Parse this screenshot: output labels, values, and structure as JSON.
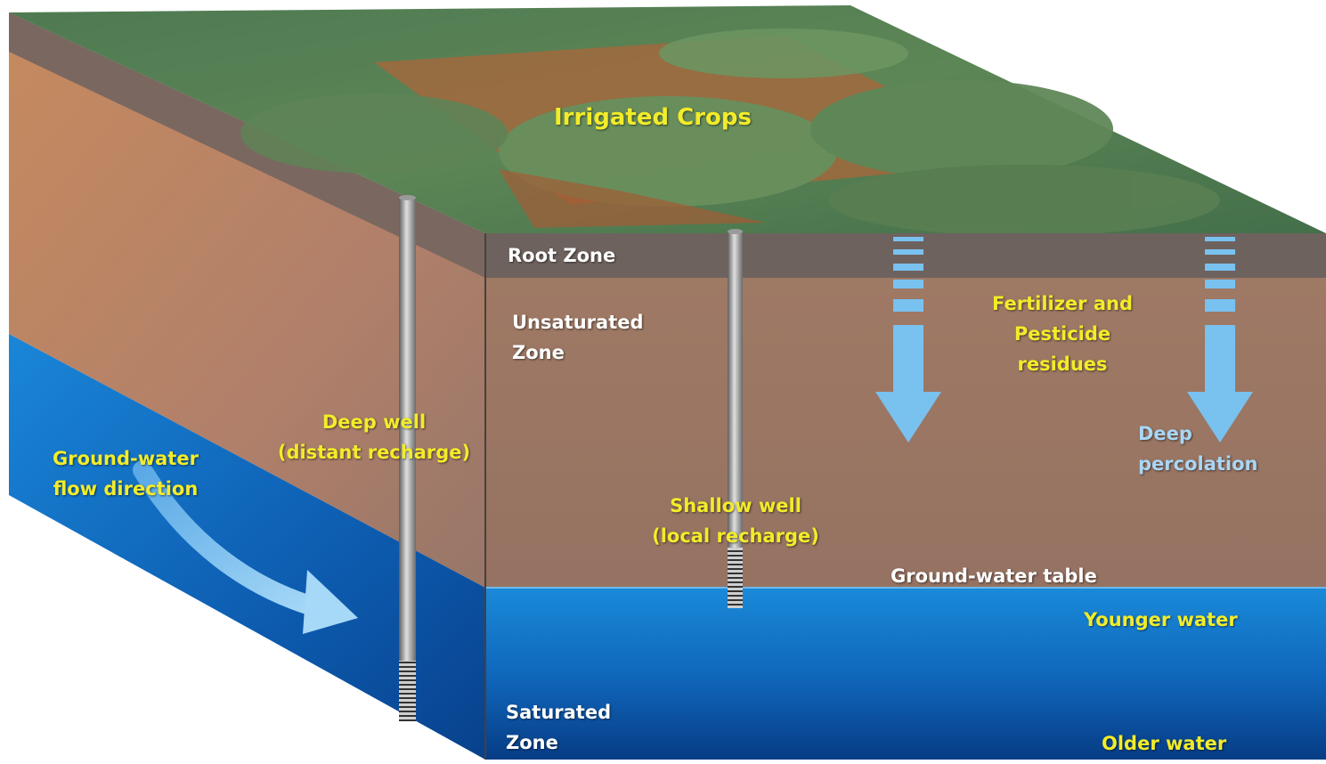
{
  "labels": {
    "irrigated_crops": "Irrigated Crops",
    "root_zone": "Root Zone",
    "unsaturated_zone": [
      "Unsaturated",
      "Zone"
    ],
    "fertilizer": [
      "Fertilizer and",
      "Pesticide",
      "residues"
    ],
    "deep_percolation": [
      "Deep",
      "percolation"
    ],
    "deep_well": [
      "Deep well",
      "(distant recharge)"
    ],
    "groundwater_flow": [
      "Ground-water",
      "flow direction"
    ],
    "shallow_well": [
      "Shallow well",
      "(local recharge)"
    ],
    "groundwater_table": "Ground-water table",
    "younger_water": "Younger water",
    "saturated_zone": [
      "Saturated",
      "Zone"
    ],
    "older_water": "Older water"
  },
  "colors": {
    "label_yellow": "#f2ec2a",
    "label_white": "#ffffff",
    "label_blue": "#a9d6f5",
    "soil": "#9a7460",
    "root_zone": "#6e625e",
    "water_top": "#1a86d8",
    "water_bottom": "#073c85",
    "arrow": "#79c1ef"
  },
  "icons": {
    "deep_well": "well-pipe-icon",
    "shallow_well": "well-pipe-icon",
    "percolation": "down-arrow-icon",
    "flow": "curved-arrow-icon"
  }
}
